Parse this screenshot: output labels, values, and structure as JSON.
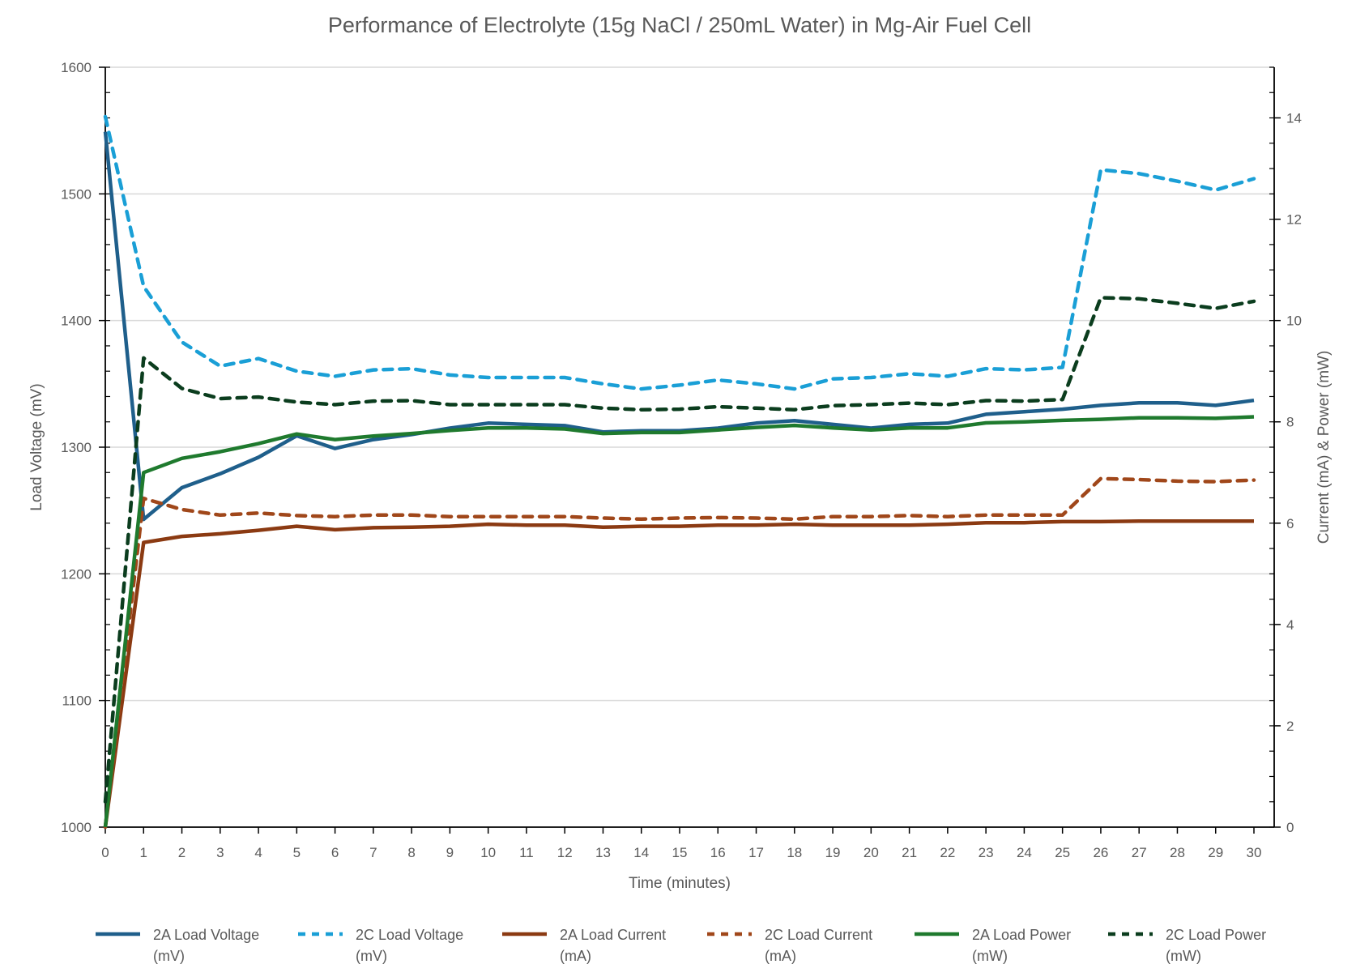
{
  "chart_data": {
    "type": "line",
    "title": "Performance of Electrolyte (15g NaCl / 250mL Water) in Mg-Air Fuel Cell",
    "xlabel": "Time (minutes)",
    "ylabel": "Load Voltage (mV)",
    "y2label": "Current (mA) & Power (mW)",
    "xlim": [
      0,
      30
    ],
    "ylim": [
      1000,
      1600
    ],
    "y2lim": [
      0,
      15
    ],
    "yticks": [
      1000,
      1100,
      1200,
      1300,
      1400,
      1500,
      1600
    ],
    "y2ticks": [
      0,
      2,
      4,
      6,
      8,
      10,
      12,
      14
    ],
    "grid": true,
    "legend": "bottom",
    "x": [
      0,
      1,
      2,
      3,
      4,
      5,
      6,
      7,
      8,
      9,
      10,
      11,
      12,
      13,
      14,
      15,
      16,
      17,
      18,
      19,
      20,
      21,
      22,
      23,
      24,
      25,
      26,
      27,
      28,
      29,
      30
    ],
    "series": [
      {
        "name": "2A Load Voltage (mV)",
        "legend_lines": [
          "2A Load Voltage",
          "(mV)"
        ],
        "axis": "left",
        "color": "#1f5f8b",
        "dash": false,
        "values": [
          1549,
          1243,
          1268,
          1279,
          1292,
          1309,
          1299,
          1306,
          1310,
          1315,
          1319,
          1318,
          1317,
          1312,
          1313,
          1313,
          1315,
          1319,
          1321,
          1318,
          1315,
          1318,
          1319,
          1326,
          1328,
          1330,
          1333,
          1335,
          1335,
          1333,
          1337
        ]
      },
      {
        "name": "2C Load Voltage (mV)",
        "legend_lines": [
          "2C Load Voltage",
          "(mV)"
        ],
        "axis": "left",
        "color": "#1a9fd6",
        "dash": true,
        "values": [
          1561,
          1427,
          1383,
          1364,
          1370,
          1360,
          1356,
          1361,
          1362,
          1357,
          1355,
          1355,
          1355,
          1350,
          1346,
          1349,
          1353,
          1350,
          1346,
          1354,
          1355,
          1358,
          1356,
          1362,
          1361,
          1363,
          1519,
          1516,
          1510,
          1503,
          1512
        ]
      },
      {
        "name": "2A Load Current (mA)",
        "legend_lines": [
          "2A Load Current",
          "(mA)"
        ],
        "axis": "right",
        "color": "#8b3a12",
        "dash": false,
        "values": [
          0,
          5.62,
          5.74,
          5.79,
          5.86,
          5.94,
          5.87,
          5.91,
          5.92,
          5.94,
          5.98,
          5.96,
          5.96,
          5.92,
          5.94,
          5.94,
          5.96,
          5.96,
          5.98,
          5.96,
          5.96,
          5.96,
          5.98,
          6.01,
          6.01,
          6.03,
          6.03,
          6.04,
          6.04,
          6.04,
          6.04
        ]
      },
      {
        "name": "2C Load Current (mA)",
        "legend_lines": [
          "2C Load Current",
          "(mA)"
        ],
        "axis": "right",
        "color": "#a0471a",
        "dash": true,
        "values": [
          0,
          6.49,
          6.27,
          6.16,
          6.2,
          6.15,
          6.13,
          6.16,
          6.16,
          6.13,
          6.13,
          6.13,
          6.13,
          6.1,
          6.08,
          6.1,
          6.11,
          6.1,
          6.08,
          6.13,
          6.13,
          6.15,
          6.13,
          6.16,
          6.16,
          6.16,
          6.88,
          6.86,
          6.83,
          6.82,
          6.85
        ]
      },
      {
        "name": "2A Load Power (mW)",
        "legend_lines": [
          "2A Load Power",
          "(mW)"
        ],
        "axis": "right",
        "color": "#1f7a2e",
        "dash": false,
        "values": [
          0,
          7.0,
          7.28,
          7.41,
          7.57,
          7.76,
          7.65,
          7.72,
          7.77,
          7.83,
          7.88,
          7.88,
          7.86,
          7.77,
          7.79,
          7.79,
          7.84,
          7.89,
          7.93,
          7.88,
          7.84,
          7.88,
          7.88,
          7.98,
          8.0,
          8.03,
          8.05,
          8.08,
          8.08,
          8.07,
          8.1
        ]
      },
      {
        "name": "2C Load Power (mW)",
        "legend_lines": [
          "2C Load Power",
          "(mW)"
        ],
        "axis": "right",
        "color": "#0b3d1e",
        "dash": true,
        "values": [
          0.5,
          9.26,
          8.66,
          8.46,
          8.49,
          8.39,
          8.34,
          8.41,
          8.42,
          8.34,
          8.34,
          8.34,
          8.34,
          8.27,
          8.24,
          8.25,
          8.3,
          8.27,
          8.24,
          8.32,
          8.34,
          8.37,
          8.34,
          8.42,
          8.41,
          8.44,
          10.45,
          10.43,
          10.34,
          10.24,
          10.38
        ]
      }
    ]
  }
}
